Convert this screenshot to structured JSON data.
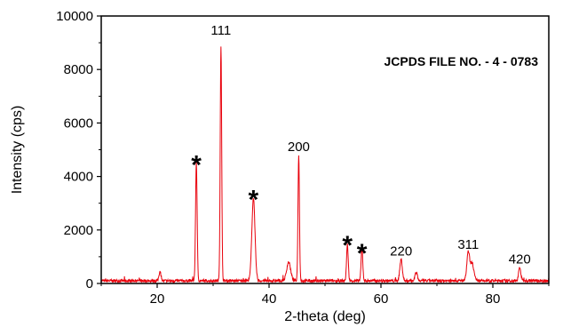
{
  "chart_data": {
    "type": "line",
    "xlabel": "2-theta (deg)",
    "ylabel": "Intensity (cps)",
    "xlim": [
      10,
      90
    ],
    "ylim": [
      0,
      10000
    ],
    "x_ticks": [
      20,
      40,
      60,
      80
    ],
    "y_ticks": [
      0,
      2000,
      4000,
      6000,
      8000,
      10000
    ],
    "line_color": "#e8000b",
    "series": [
      {
        "baseline": 100,
        "peaks": [
          {
            "x": 20.5,
            "y": 350,
            "w": 0.18
          },
          {
            "x": 27.0,
            "y": 4450,
            "w": 0.14
          },
          {
            "x": 31.4,
            "y": 8800,
            "w": 0.13
          },
          {
            "x": 37.2,
            "y": 3100,
            "w": 0.28
          },
          {
            "x": 43.5,
            "y": 700,
            "w": 0.35
          },
          {
            "x": 45.3,
            "y": 4700,
            "w": 0.13
          },
          {
            "x": 54.0,
            "y": 1350,
            "w": 0.15
          },
          {
            "x": 56.6,
            "y": 1200,
            "w": 0.15
          },
          {
            "x": 63.6,
            "y": 800,
            "w": 0.22
          },
          {
            "x": 66.3,
            "y": 350,
            "w": 0.2
          },
          {
            "x": 75.6,
            "y": 1050,
            "w": 0.25
          },
          {
            "x": 76.3,
            "y": 650,
            "w": 0.3
          },
          {
            "x": 84.8,
            "y": 500,
            "w": 0.2
          }
        ]
      }
    ],
    "annotations": [
      {
        "text": "111",
        "x": 31.4,
        "y": 9300
      },
      {
        "text": "200",
        "x": 45.3,
        "y": 4950
      },
      {
        "text": "220",
        "x": 63.6,
        "y": 1050
      },
      {
        "text": "311",
        "x": 75.6,
        "y": 1300
      },
      {
        "text": "420",
        "x": 84.8,
        "y": 750
      },
      {
        "text": "*",
        "x": 27.0,
        "y": 4500
      },
      {
        "text": "*",
        "x": 37.2,
        "y": 3200
      },
      {
        "text": "*",
        "x": 54.0,
        "y": 1500
      },
      {
        "text": "*",
        "x": 56.6,
        "y": 1200
      }
    ],
    "file_note": "JCPDS FILE NO. - 4 - 0783"
  }
}
